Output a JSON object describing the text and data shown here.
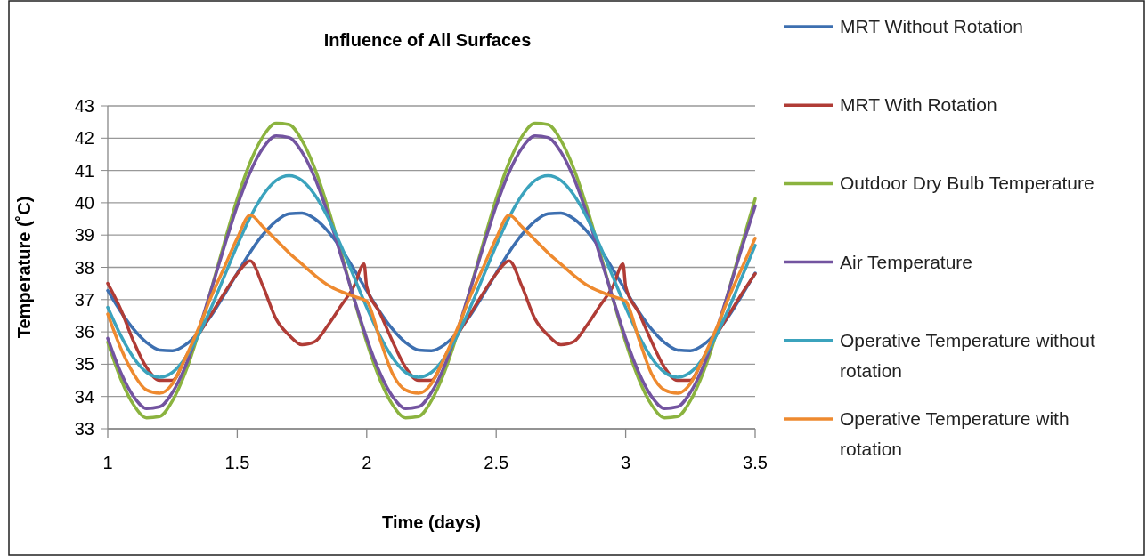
{
  "chart_data": {
    "type": "line",
    "title": "Influence of All Surfaces",
    "xlabel": "Time (days)",
    "ylabel": "Temperature (˚C)",
    "x": [
      1,
      1.05,
      1.1,
      1.15,
      1.2,
      1.25,
      1.3,
      1.35,
      1.4,
      1.45,
      1.5,
      1.55,
      1.6,
      1.65,
      1.7,
      1.75,
      1.8,
      1.85,
      1.9,
      1.95,
      2,
      2.05,
      2.1,
      2.15,
      2.2,
      2.25,
      2.3,
      2.35,
      2.4,
      2.45,
      2.5,
      2.55,
      2.6,
      2.65,
      2.7,
      2.75,
      2.8,
      2.85,
      2.9,
      2.95,
      3,
      3.05,
      3.1,
      3.15,
      3.2,
      3.25,
      3.3,
      3.35,
      3.4,
      3.45,
      3.5
    ],
    "series": [
      {
        "name": "MRT Without Rotation",
        "color": "#3d6fb0",
        "values": [
          37.28,
          36.63,
          36.08,
          35.67,
          35.44,
          35.42,
          35.6,
          35.98,
          36.51,
          37.15,
          37.82,
          38.47,
          39.02,
          39.43,
          39.66,
          39.68,
          39.5,
          39.12,
          38.59,
          37.95,
          37.28,
          36.63,
          36.08,
          35.67,
          35.44,
          35.42,
          35.6,
          35.98,
          36.51,
          37.15,
          37.82,
          38.47,
          39.02,
          39.43,
          39.66,
          39.68,
          39.5,
          39.12,
          38.59,
          37.95,
          37.28,
          36.63,
          36.08,
          35.67,
          35.44,
          35.42,
          35.6,
          35.98,
          36.51,
          37.15,
          37.82
        ]
      },
      {
        "name": "MRT With Rotation",
        "color": "#b03c36",
        "x": [
          1,
          1.05,
          1.1,
          1.15,
          1.2,
          1.25,
          1.3,
          1.35,
          1.4,
          1.45,
          1.5,
          1.55,
          1.6,
          1.65,
          1.7,
          1.75,
          1.8,
          1.85,
          1.9,
          1.95,
          1.99,
          2,
          2.05,
          2.1,
          2.15,
          2.2,
          2.25,
          2.3,
          2.35,
          2.4,
          2.45,
          2.5,
          2.55,
          2.6,
          2.65,
          2.7,
          2.75,
          2.8,
          2.85,
          2.9,
          2.95,
          2.99,
          3,
          3.05,
          3.1,
          3.15,
          3.2,
          3.25,
          3.3,
          3.35,
          3.4,
          3.45,
          3.5
        ],
        "values": [
          37.5,
          36.7,
          35.7,
          34.9,
          34.5,
          34.5,
          35.2,
          35.9,
          36.55,
          37.2,
          37.8,
          38.2,
          37.4,
          36.4,
          35.9,
          35.6,
          35.7,
          36.2,
          36.8,
          37.4,
          38.1,
          37.4,
          36.6,
          35.7,
          34.9,
          34.5,
          34.5,
          35.2,
          35.9,
          36.55,
          37.2,
          37.8,
          38.2,
          37.4,
          36.4,
          35.9,
          35.6,
          35.7,
          36.2,
          36.8,
          37.4,
          38.1,
          37.4,
          36.6,
          35.7,
          34.9,
          34.5,
          34.5,
          35.2,
          35.9,
          36.55,
          37.2,
          37.8
        ]
      },
      {
        "name": "Outdoor Dry Bulb Temperature",
        "color": "#8bb33f",
        "values": [
          35.68,
          34.55,
          33.74,
          33.34,
          33.38,
          33.87,
          34.75,
          35.94,
          37.33,
          38.76,
          40.12,
          41.25,
          42.06,
          42.46,
          42.42,
          41.93,
          41.05,
          39.86,
          38.48,
          37.04,
          35.68,
          34.55,
          33.74,
          33.34,
          33.38,
          33.87,
          34.75,
          35.94,
          37.33,
          38.76,
          40.12,
          41.25,
          42.06,
          42.46,
          42.42,
          41.93,
          41.05,
          39.86,
          38.48,
          37.04,
          35.68,
          34.55,
          33.74,
          33.34,
          33.38,
          33.87,
          34.75,
          35.94,
          37.33,
          38.76,
          40.12
        ]
      },
      {
        "name": "Air Temperature",
        "color": "#7354a0",
        "values": [
          35.8,
          34.75,
          34.0,
          33.63,
          33.68,
          34.13,
          34.94,
          36.04,
          37.32,
          38.64,
          39.9,
          40.95,
          41.7,
          42.07,
          42.02,
          41.57,
          40.76,
          39.66,
          38.38,
          37.06,
          35.8,
          34.75,
          34.0,
          33.63,
          33.68,
          34.13,
          34.94,
          36.04,
          37.32,
          38.64,
          39.9,
          40.95,
          41.7,
          42.07,
          42.02,
          41.57,
          40.76,
          39.66,
          38.38,
          37.06,
          35.8,
          34.75,
          34.0,
          33.63,
          33.68,
          34.13,
          34.94,
          36.04,
          37.32,
          38.64,
          39.9
        ]
      },
      {
        "name": "Operative Temperature without rotation",
        "color": "#3ba3bd",
        "values": [
          36.76,
          35.89,
          35.2,
          34.75,
          34.6,
          34.75,
          35.2,
          35.89,
          36.76,
          37.72,
          38.68,
          39.55,
          40.24,
          40.69,
          40.84,
          40.69,
          40.24,
          39.55,
          38.68,
          37.72,
          36.76,
          35.89,
          35.2,
          34.75,
          34.6,
          34.75,
          35.2,
          35.89,
          36.76,
          37.72,
          38.68,
          39.55,
          40.24,
          40.69,
          40.84,
          40.69,
          40.24,
          39.55,
          38.68,
          37.72,
          36.76,
          35.89,
          35.2,
          34.75,
          34.6,
          34.75,
          35.2,
          35.89,
          36.76,
          37.72,
          38.68
        ]
      },
      {
        "name": "Operative Temperature with rotation",
        "color": "#ee8a2f",
        "values": [
          36.55,
          35.5,
          34.7,
          34.2,
          34.1,
          34.4,
          35.2,
          36.1,
          37.1,
          38.0,
          38.9,
          39.62,
          39.25,
          38.85,
          38.45,
          38.1,
          37.75,
          37.45,
          37.25,
          37.1,
          36.95,
          35.8,
          34.7,
          34.2,
          34.1,
          34.4,
          35.2,
          36.1,
          37.1,
          38.0,
          38.9,
          39.62,
          39.25,
          38.85,
          38.45,
          38.1,
          37.75,
          37.45,
          37.25,
          37.1,
          36.95,
          35.8,
          34.7,
          34.2,
          34.1,
          34.4,
          35.2,
          36.1,
          37.1,
          38.0,
          38.9
        ]
      }
    ],
    "xlim": [
      1,
      3.5
    ],
    "xticks": [
      1,
      1.5,
      2,
      2.5,
      3,
      3.5
    ],
    "ylim": [
      33,
      43
    ],
    "yticks": [
      33,
      34,
      35,
      36,
      37,
      38,
      39,
      40,
      41,
      42,
      43
    ],
    "grid": "y",
    "legend": "right",
    "marker": "none",
    "line_style": "solid"
  }
}
